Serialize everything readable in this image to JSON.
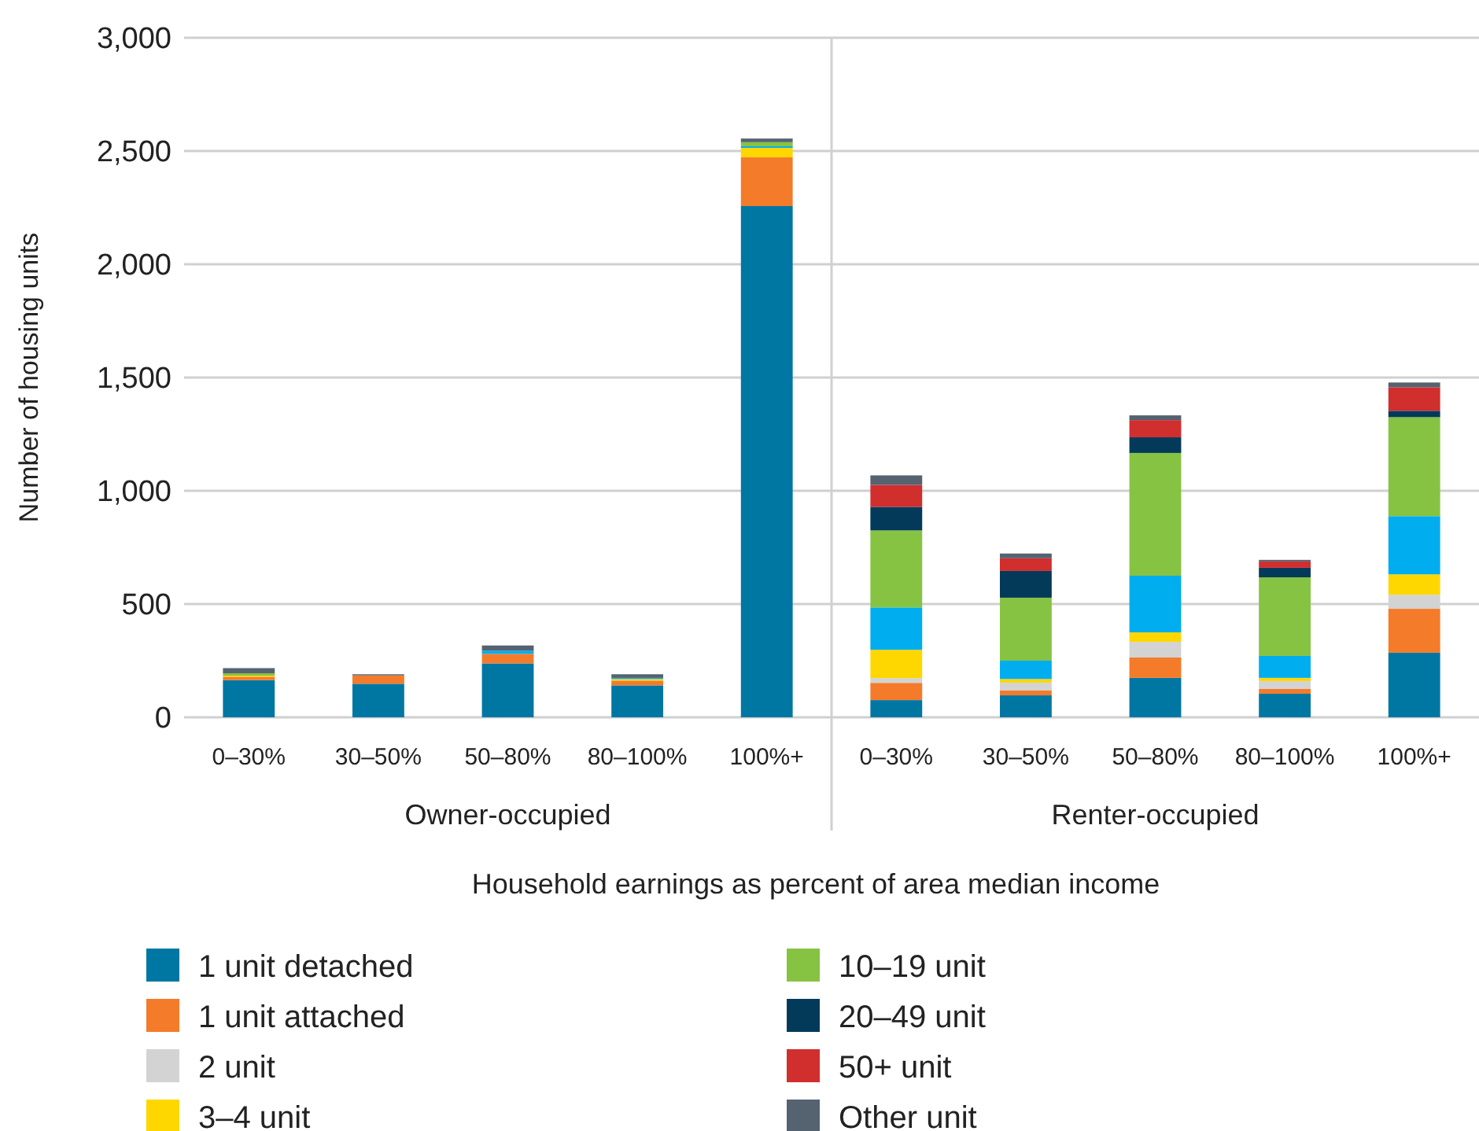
{
  "chart_data": {
    "type": "bar",
    "stacked": true,
    "xlabel": "Household earnings as percent of area median income",
    "ylabel": "Number of housing units",
    "categories": [
      "0–30%",
      "30–50%",
      "50–80%",
      "80–100%",
      "100%+",
      "0–30%",
      "30–50%",
      "50–80%",
      "80–100%",
      "100%+"
    ],
    "annotations": [
      "Owner-occupied",
      "Renter-occupied"
    ],
    "ylim": [
      0,
      3000
    ],
    "yticks": [
      0,
      {
        "value": 500,
        "label": "500"
      },
      {
        "value": 1000,
        "label": "1,000"
      },
      {
        "value": 1500,
        "label": "1,500"
      },
      {
        "value": 2000,
        "label": "2,000"
      },
      {
        "value": 2500,
        "label": "2,500"
      },
      {
        "value": 3000,
        "label": "3,000"
      }
    ],
    "grid": "y",
    "legend": "bottom",
    "series": [
      {
        "name": "1 unit detached",
        "color": "#0077a3",
        "values": [
          164,
          148,
          238,
          141,
          2257,
          76,
          97,
          174,
          104,
          285
        ]
      },
      {
        "name": "1 unit attached",
        "color": "#f47b2a",
        "values": [
          15,
          37,
          42,
          21,
          215,
          76,
          21,
          90,
          21,
          194
        ]
      },
      {
        "name": "2 unit",
        "color": "#d3d3d3",
        "values": [
          0,
          0,
          0,
          0,
          0,
          21,
          35,
          69,
          35,
          62
        ]
      },
      {
        "name": "3–4 unit",
        "color": "#ffd700",
        "values": [
          5,
          0,
          0,
          7,
          42,
          125,
          16,
          42,
          14,
          90
        ]
      },
      {
        "color": "#00adef",
        "values": [
          0,
          0,
          14,
          5,
          7,
          187,
          81,
          250,
          97,
          257
        ]
      },
      {
        "name": "10–19 unit",
        "color": "#86c342",
        "values": [
          10,
          0,
          0,
          0,
          18,
          340,
          278,
          542,
          347,
          437
        ]
      },
      {
        "name": "20–49 unit",
        "color": "#033a5a",
        "values": [
          0,
          0,
          0,
          0,
          0,
          104,
          118,
          69,
          42,
          28
        ]
      },
      {
        "name": "50+ unit",
        "color": "#d12e2e",
        "values": [
          0,
          0,
          0,
          0,
          0,
          97,
          56,
          76,
          28,
          104
        ]
      },
      {
        "name": "Other unit",
        "color": "#556270",
        "values": [
          23,
          5,
          23,
          16,
          16,
          42,
          21,
          21,
          7,
          21
        ]
      }
    ]
  }
}
